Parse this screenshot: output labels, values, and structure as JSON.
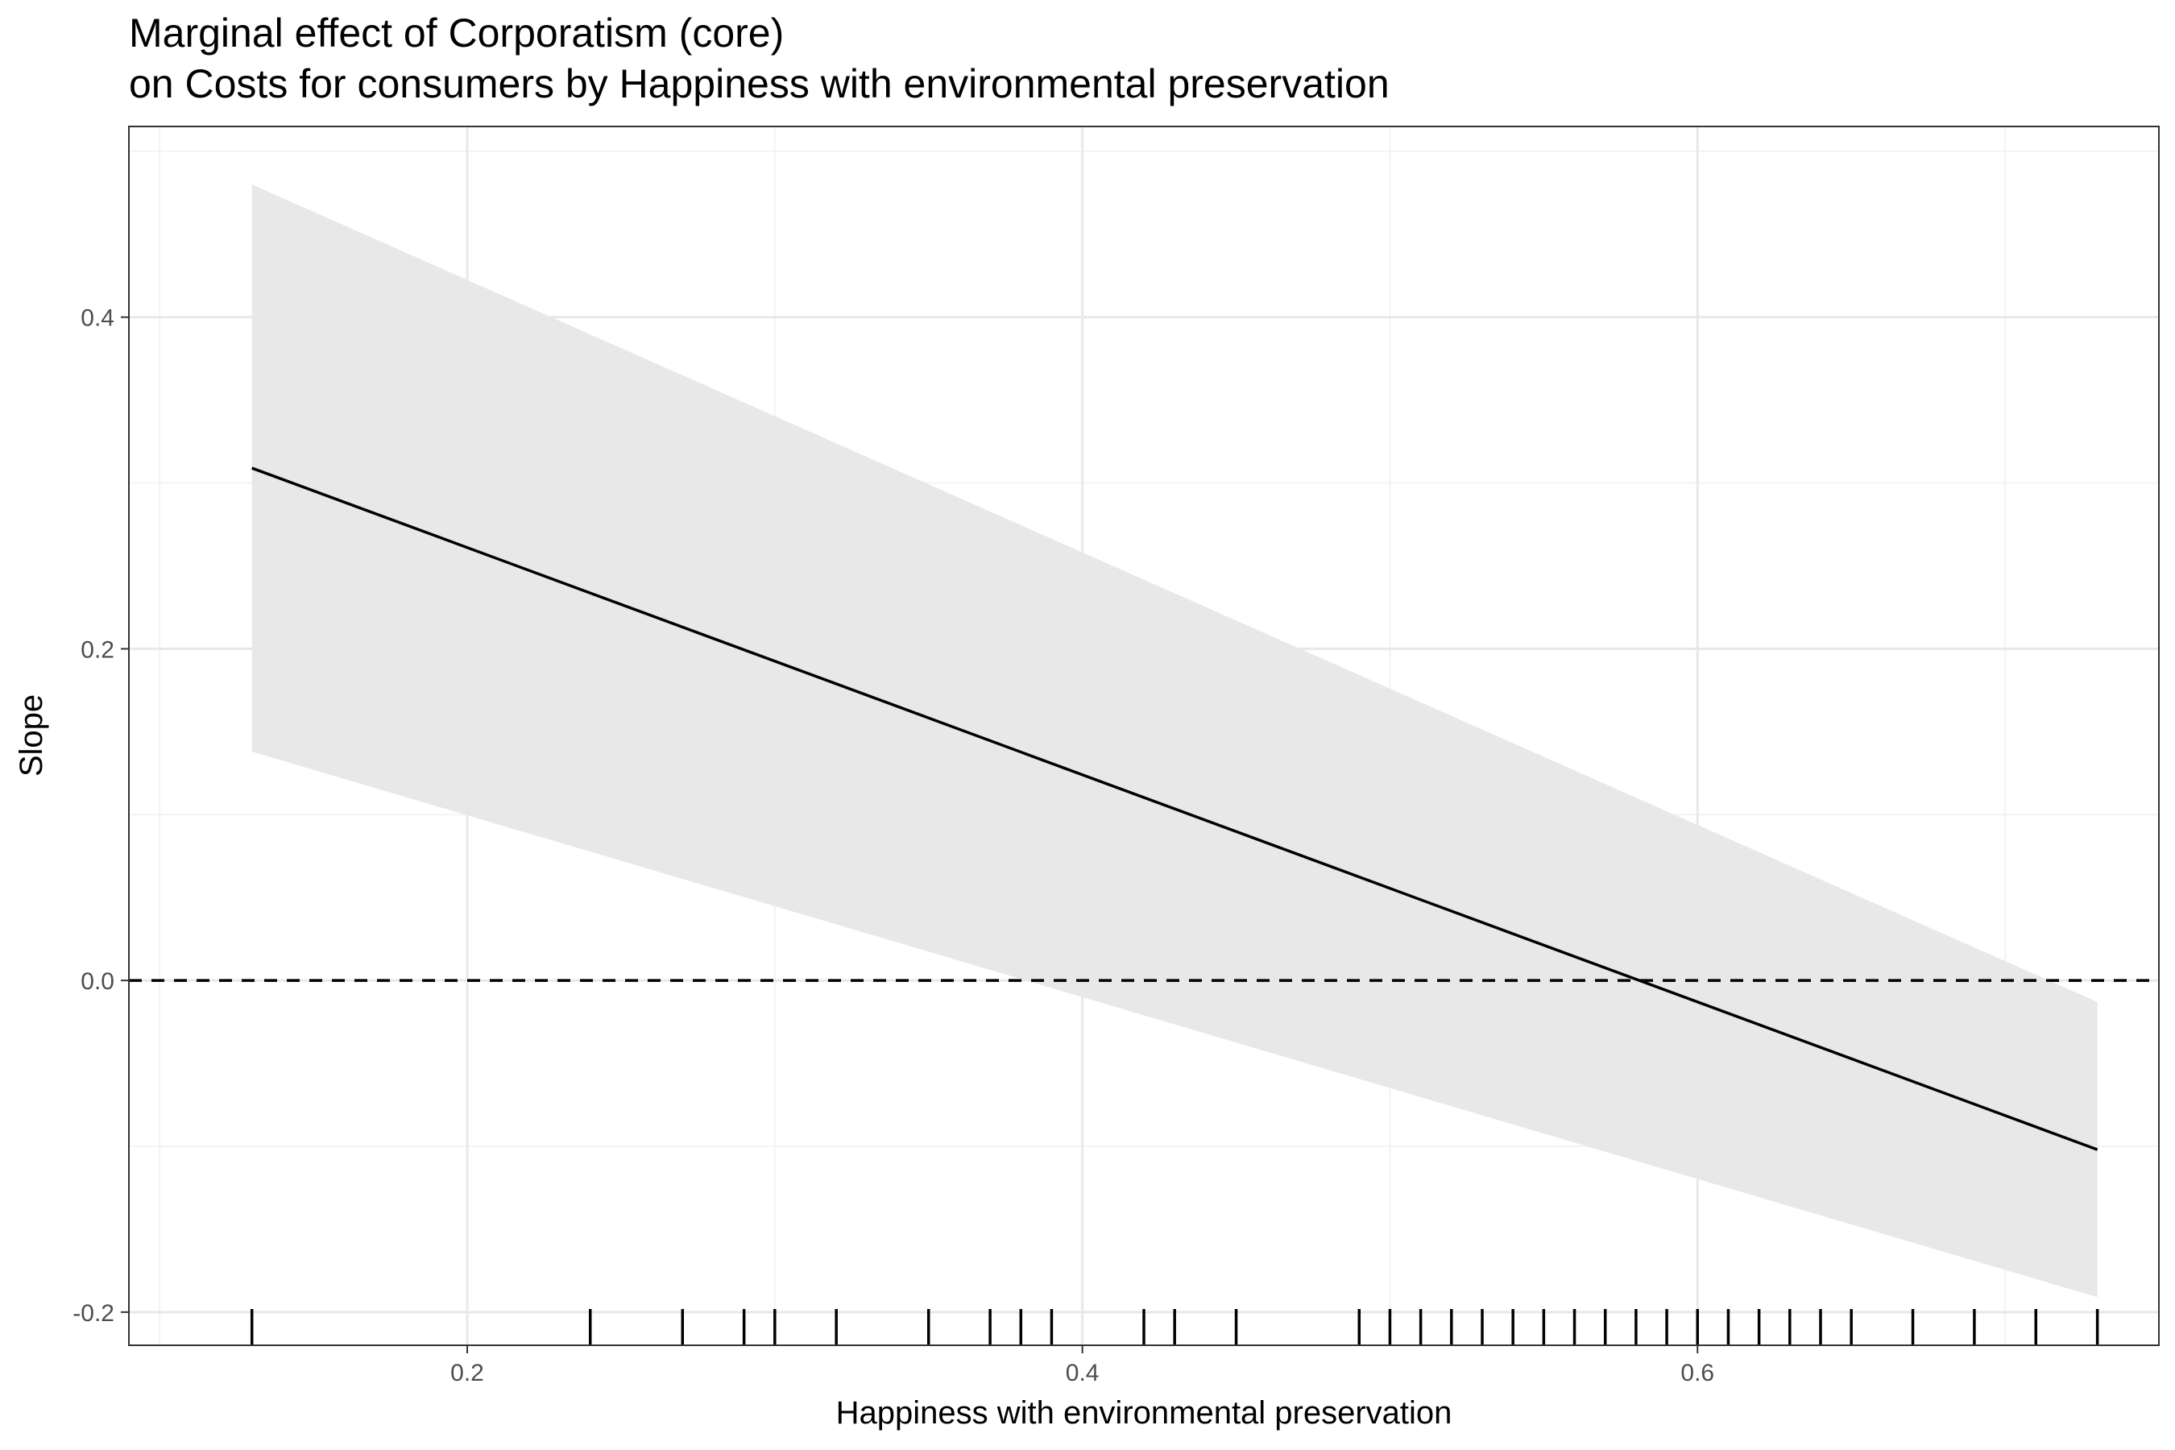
{
  "chart_data": {
    "type": "line",
    "title_line1": "Marginal effect of Corporatism (core)",
    "title_line2": "on Costs for consumers by Happiness with environmental preservation",
    "xlabel": "Happiness with environmental preservation",
    "ylabel": "Slope",
    "xlim": [
      0.09,
      0.75
    ],
    "ylim": [
      -0.22,
      0.515
    ],
    "x_ticks": [
      0.2,
      0.4,
      0.6
    ],
    "x_tick_labels": [
      "0.2",
      "0.4",
      "0.6"
    ],
    "y_ticks": [
      -0.2,
      0.0,
      0.2,
      0.4
    ],
    "y_tick_labels": [
      "-0.2",
      "0.0",
      "0.2",
      "0.4"
    ],
    "x_minor_gridlines": [
      0.1,
      0.3,
      0.5,
      0.7
    ],
    "y_minor_gridlines": [
      -0.1,
      0.1,
      0.3,
      0.5
    ],
    "grid": true,
    "reference_line": {
      "y": 0.0,
      "style": "dashed"
    },
    "series": [
      {
        "x": [
          0.13,
          0.73
        ],
        "y": [
          0.309,
          -0.102
        ],
        "ci_lower": [
          0.138,
          -0.191
        ],
        "ci_upper": [
          0.48,
          -0.013
        ]
      }
    ],
    "rug_x": [
      0.13,
      0.24,
      0.27,
      0.29,
      0.3,
      0.32,
      0.35,
      0.37,
      0.38,
      0.39,
      0.42,
      0.43,
      0.45,
      0.49,
      0.5,
      0.51,
      0.52,
      0.53,
      0.54,
      0.55,
      0.56,
      0.57,
      0.58,
      0.59,
      0.6,
      0.61,
      0.62,
      0.63,
      0.64,
      0.65,
      0.67,
      0.69,
      0.71,
      0.73
    ],
    "colors": {
      "line": "#000000",
      "ribbon": "#e8e8e8",
      "grid_major": "#e8e8e8",
      "grid_minor": "#f3f3f3",
      "panel_border": "#333333",
      "rug": "#000000"
    }
  }
}
